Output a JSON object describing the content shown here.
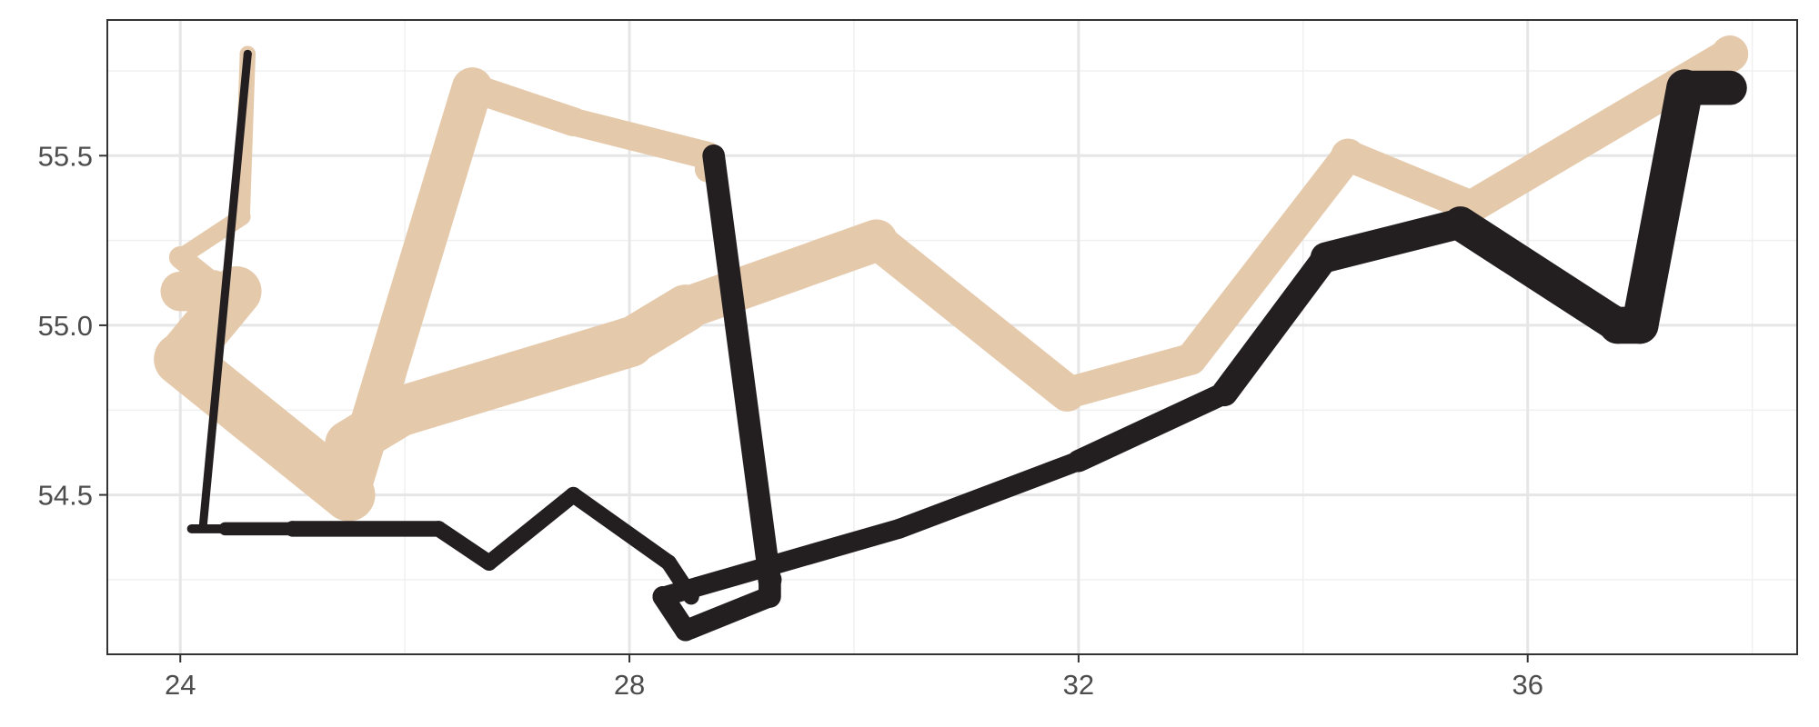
{
  "chart_data": {
    "type": "line",
    "title": "",
    "xlabel": "",
    "ylabel": "",
    "xlim": [
      23.35,
      38.4
    ],
    "ylim": [
      54.03,
      55.9
    ],
    "x_ticks": [
      24,
      28,
      32,
      36
    ],
    "x_tick_labels": [
      "24",
      "28",
      "32",
      "36"
    ],
    "y_ticks": [
      54.5,
      55.0,
      55.5
    ],
    "y_tick_labels": [
      "54.5",
      "55.0",
      "55.5"
    ],
    "grid": true,
    "legend": "none",
    "line_width_note": "line thickness varies along each path (mapped to a hidden variable)",
    "series": [
      {
        "color": "#e5c9ab",
        "points": [
          {
            "x": 24.6,
            "y": 55.8,
            "w": 0.3
          },
          {
            "x": 24.55,
            "y": 55.32,
            "w": 0.3
          },
          {
            "x": 24.0,
            "y": 55.2,
            "w": 0.35
          },
          {
            "x": 24.3,
            "y": 55.12,
            "w": 0.5
          },
          {
            "x": 24.0,
            "y": 55.1,
            "w": 0.6
          },
          {
            "x": 24.5,
            "y": 55.1,
            "w": 0.9
          },
          {
            "x": 24.0,
            "y": 54.9,
            "w": 1.0
          },
          {
            "x": 25.5,
            "y": 54.5,
            "w": 1.0
          },
          {
            "x": 26.6,
            "y": 55.7,
            "w": 0.55
          },
          {
            "x": 27.5,
            "y": 55.6,
            "w": 0.55
          },
          {
            "x": 28.7,
            "y": 55.5,
            "w": 0.5
          },
          {
            "x": 28.7,
            "y": 55.46,
            "w": 0.5
          }
        ]
      },
      {
        "color": "#e5c9ab",
        "points": [
          {
            "x": 25.5,
            "y": 54.65,
            "w": 0.85
          },
          {
            "x": 26.0,
            "y": 54.75,
            "w": 0.95
          },
          {
            "x": 27.0,
            "y": 54.85,
            "w": 0.95
          },
          {
            "x": 28.0,
            "y": 54.95,
            "w": 0.95
          },
          {
            "x": 28.5,
            "y": 55.05,
            "w": 0.85
          },
          {
            "x": 30.2,
            "y": 55.25,
            "w": 0.75
          },
          {
            "x": 31.9,
            "y": 54.8,
            "w": 0.65
          },
          {
            "x": 33.0,
            "y": 54.9,
            "w": 0.55
          },
          {
            "x": 34.4,
            "y": 55.5,
            "w": 0.65
          },
          {
            "x": 35.5,
            "y": 55.35,
            "w": 0.55
          },
          {
            "x": 37.8,
            "y": 55.8,
            "w": 0.7
          }
        ]
      },
      {
        "color": "#231f20",
        "points": [
          {
            "x": 24.6,
            "y": 55.8,
            "w": 0.12
          },
          {
            "x": 24.2,
            "y": 54.4,
            "w": 0.12
          },
          {
            "x": 24.1,
            "y": 54.4,
            "w": 0.14
          },
          {
            "x": 24.4,
            "y": 54.4,
            "w": 0.2
          },
          {
            "x": 25.0,
            "y": 54.4,
            "w": 0.3
          },
          {
            "x": 26.3,
            "y": 54.4,
            "w": 0.3
          },
          {
            "x": 26.75,
            "y": 54.3,
            "w": 0.3
          },
          {
            "x": 27.5,
            "y": 54.5,
            "w": 0.3
          },
          {
            "x": 28.35,
            "y": 54.3,
            "w": 0.3
          },
          {
            "x": 28.55,
            "y": 54.2,
            "w": 0.3
          }
        ]
      },
      {
        "color": "#231f20",
        "points": [
          {
            "x": 28.75,
            "y": 55.5,
            "w": 0.4
          },
          {
            "x": 29.25,
            "y": 54.25,
            "w": 0.45
          },
          {
            "x": 29.25,
            "y": 54.2,
            "w": 0.4
          },
          {
            "x": 28.5,
            "y": 54.1,
            "w": 0.4
          },
          {
            "x": 28.3,
            "y": 54.2,
            "w": 0.4
          },
          {
            "x": 30.4,
            "y": 54.4,
            "w": 0.35
          },
          {
            "x": 32.0,
            "y": 54.6,
            "w": 0.4
          },
          {
            "x": 33.3,
            "y": 54.8,
            "w": 0.45
          },
          {
            "x": 34.2,
            "y": 55.2,
            "w": 0.55
          },
          {
            "x": 35.4,
            "y": 55.3,
            "w": 0.6
          },
          {
            "x": 36.8,
            "y": 55.0,
            "w": 0.7
          },
          {
            "x": 37.0,
            "y": 55.0,
            "w": 0.7
          },
          {
            "x": 37.4,
            "y": 55.7,
            "w": 0.7
          },
          {
            "x": 37.8,
            "y": 55.7,
            "w": 0.6
          }
        ]
      }
    ]
  }
}
